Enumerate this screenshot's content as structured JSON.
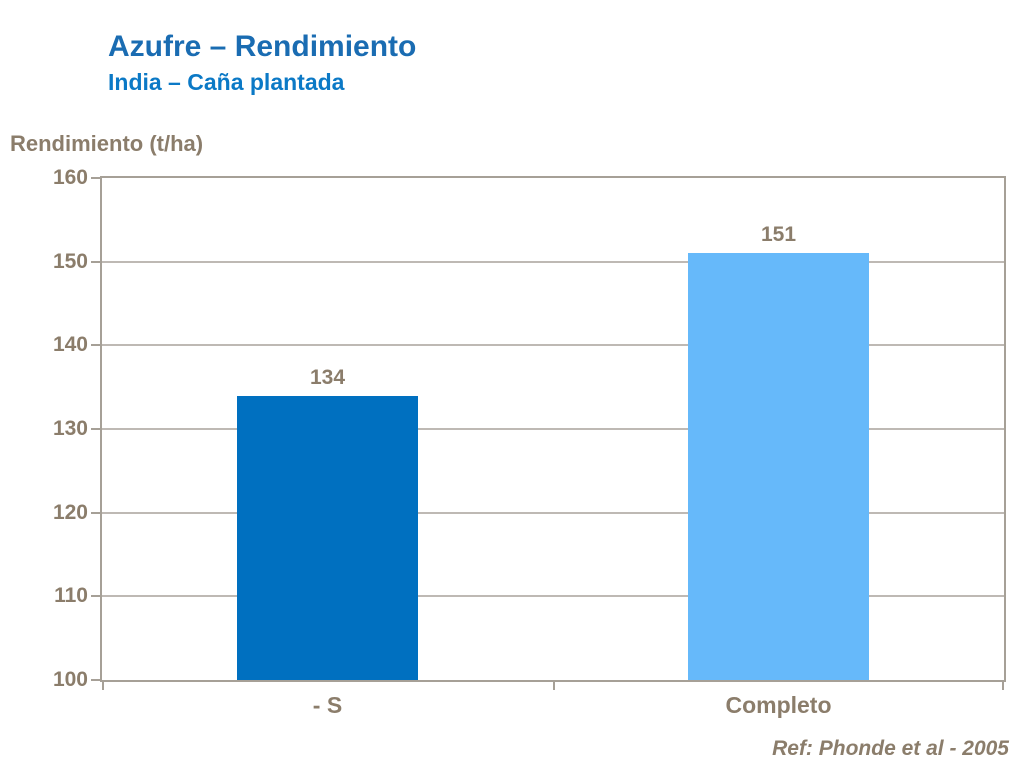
{
  "header": {
    "title": "Azufre – Rendimiento",
    "subtitle": "India – Caña plantada"
  },
  "footer": {
    "reference": "Ref: Phonde et al - 2005"
  },
  "colors": {
    "title_blue": "#1a6cb2",
    "subtitle_blue": "#0b79c6",
    "axis_text_brown": "#8b7d6b",
    "plot_border_gray": "#a6a097",
    "gridline_gray": "#beb9b4",
    "bar_dark_blue": "#0070c0",
    "bar_light_blue": "#66b9fa"
  },
  "chart_data": {
    "type": "bar",
    "title": "Azufre – Rendimiento",
    "subtitle": "India – Caña plantada",
    "ylabel": "Rendimiento (t/ha)",
    "xlabel": "",
    "categories": [
      "- S",
      "Completo"
    ],
    "values": [
      134,
      151
    ],
    "value_labels": [
      "134",
      "151"
    ],
    "bar_colors": [
      "#0070c0",
      "#66b9fa"
    ],
    "ylim": [
      100,
      160
    ],
    "yticks": [
      160,
      150,
      140,
      130,
      120,
      110,
      100
    ],
    "grid": true,
    "legend": "none",
    "annotation": "Ref: Phonde et al - 2005"
  }
}
